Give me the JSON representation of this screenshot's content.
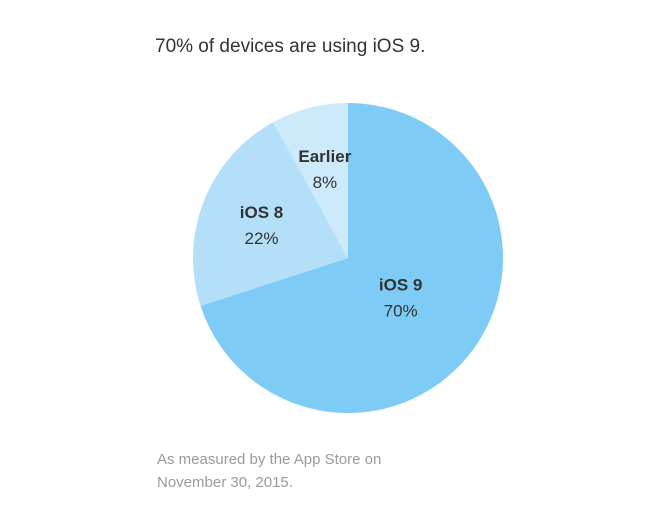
{
  "chart_data": {
    "type": "pie",
    "title": "70% of devices are using iOS 9.",
    "categories": [
      "iOS 9",
      "iOS 8",
      "Earlier"
    ],
    "values": [
      70,
      22,
      8
    ],
    "value_labels": [
      "70%",
      "22%",
      "8%"
    ],
    "colors": [
      "#7ecbf5",
      "#b4dff8",
      "#cdeafb"
    ],
    "footnote": "As measured by the App Store on November 30, 2015."
  }
}
